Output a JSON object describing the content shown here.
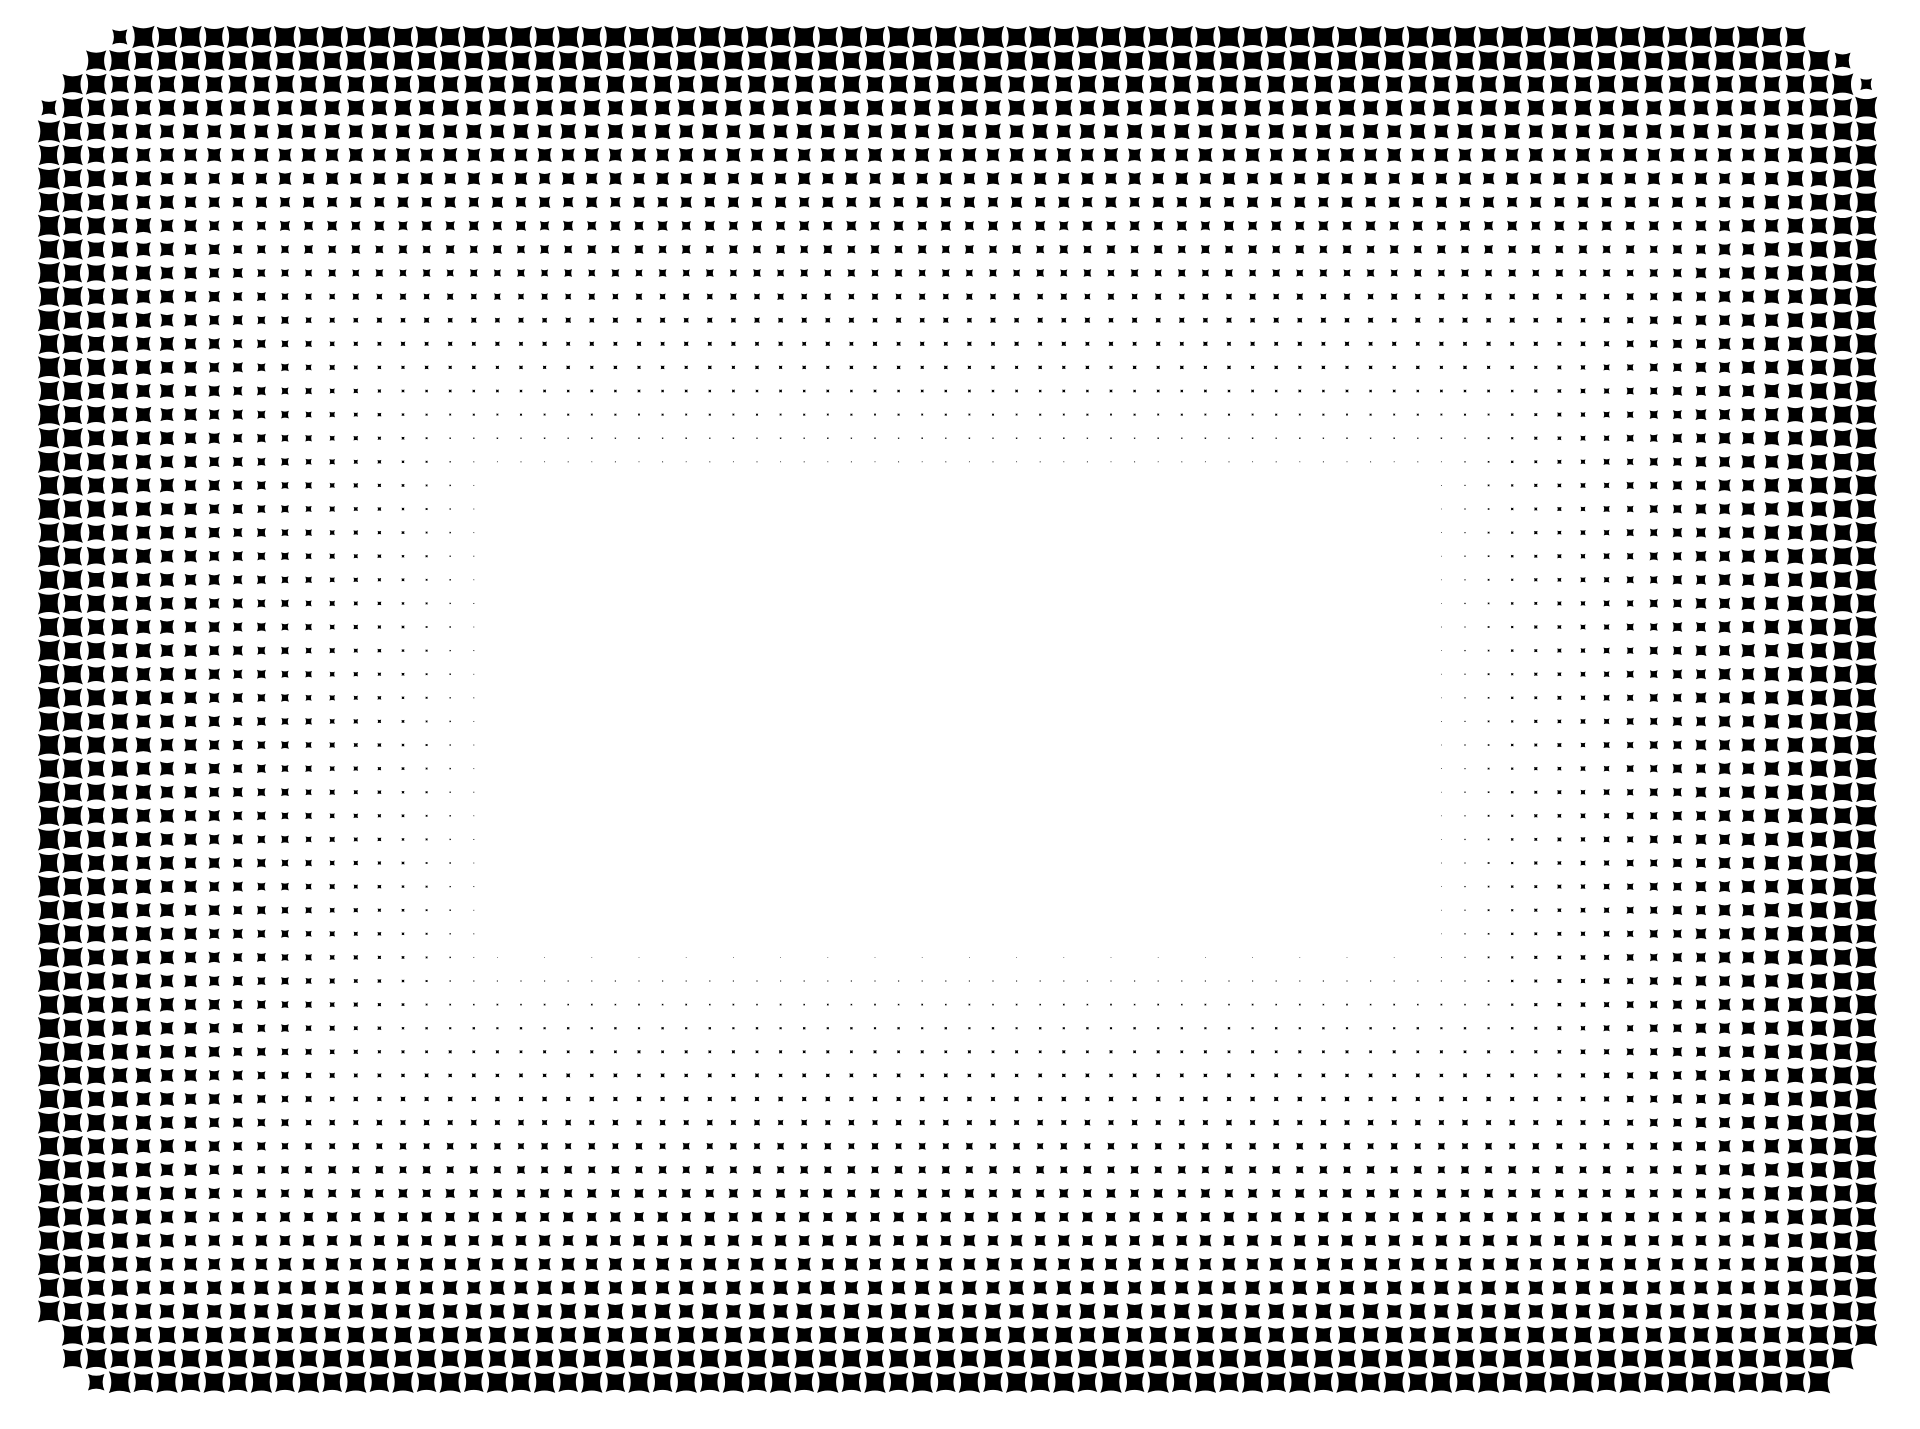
{
  "pattern": {
    "shape": "four-point-star",
    "arrangement": "halftone-rounded-rectangle-frame",
    "gradient": "dense-at-edges-fading-to-center",
    "colors": {
      "mark": "#000000",
      "background": "#ffffff"
    }
  }
}
